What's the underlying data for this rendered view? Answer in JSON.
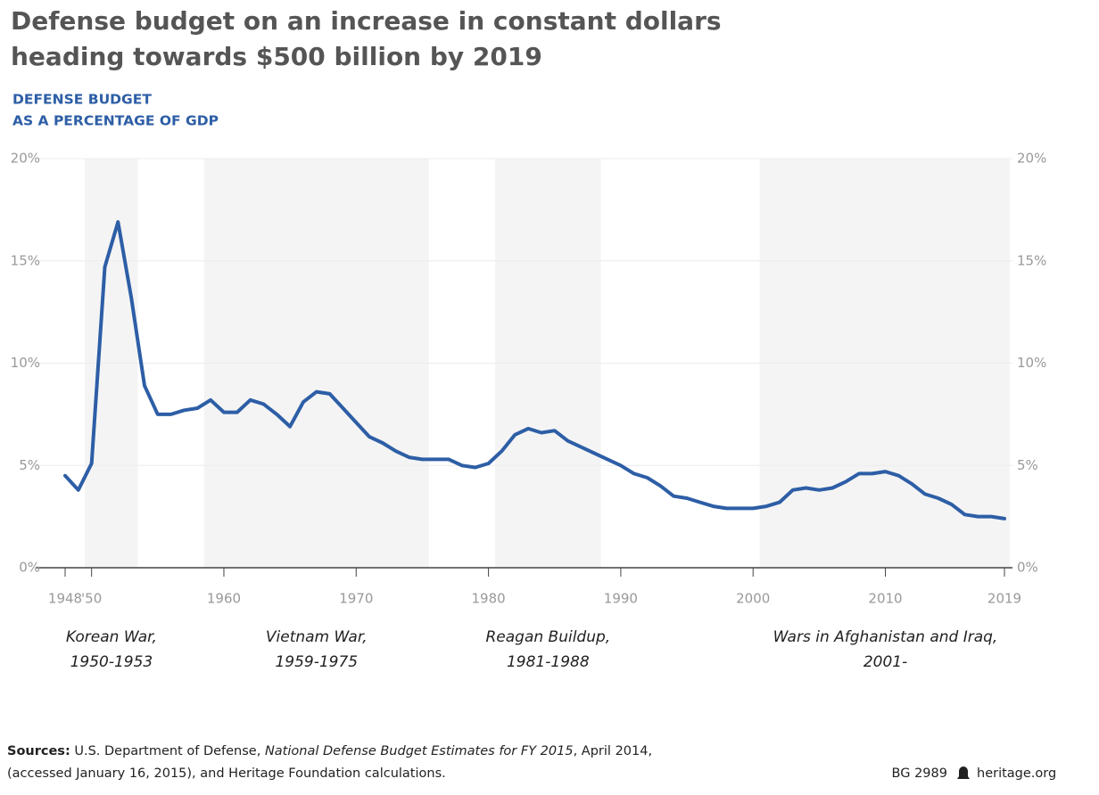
{
  "chart_data": {
    "type": "line",
    "title": [
      "Defense budget on an increase in constant dollars",
      "heading towards $500 billion by 2019"
    ],
    "subtitle": [
      "DEFENSE BUDGET",
      "AS A PERCENTAGE OF GDP"
    ],
    "x": [
      1948,
      1949,
      1950,
      1951,
      1952,
      1953,
      1954,
      1955,
      1956,
      1957,
      1958,
      1959,
      1960,
      1961,
      1962,
      1963,
      1964,
      1965,
      1966,
      1967,
      1968,
      1969,
      1970,
      1971,
      1972,
      1973,
      1974,
      1975,
      1976,
      1977,
      1978,
      1979,
      1980,
      1981,
      1982,
      1983,
      1984,
      1985,
      1986,
      1987,
      1988,
      1989,
      1990,
      1991,
      1992,
      1993,
      1994,
      1995,
      1996,
      1997,
      1998,
      1999,
      2000,
      2001,
      2002,
      2003,
      2004,
      2005,
      2006,
      2007,
      2008,
      2009,
      2010,
      2011,
      2012,
      2013,
      2014,
      2015,
      2016,
      2017,
      2018,
      2019
    ],
    "values": [
      4.5,
      3.8,
      5.1,
      14.7,
      16.9,
      13.2,
      8.9,
      7.5,
      7.5,
      7.7,
      7.8,
      8.2,
      7.6,
      7.6,
      8.2,
      8.0,
      7.5,
      6.9,
      8.1,
      8.6,
      8.5,
      7.8,
      7.1,
      6.4,
      6.1,
      5.7,
      5.4,
      5.3,
      5.3,
      5.3,
      5.0,
      4.9,
      5.1,
      5.7,
      6.5,
      6.8,
      6.6,
      6.7,
      6.2,
      5.9,
      5.6,
      5.3,
      5.0,
      4.6,
      4.4,
      4.0,
      3.5,
      3.4,
      3.2,
      3.0,
      2.9,
      2.9,
      2.9,
      3.0,
      3.2,
      3.8,
      3.9,
      3.8,
      3.9,
      4.2,
      4.6,
      4.6,
      4.7,
      4.5,
      4.1,
      3.6,
      3.4,
      3.1,
      2.6,
      2.5,
      2.5,
      2.4
    ],
    "color": "#2d5ea6",
    "xlim": [
      1948,
      2019
    ],
    "xticks": [
      {
        "value": 1948,
        "label": "1948"
      },
      {
        "value": 1950,
        "label": "'50"
      },
      1960,
      1970,
      1980,
      1990,
      2000,
      2010,
      2019
    ],
    "ylim": [
      0,
      20
    ],
    "yticks": [
      {
        "value": 0,
        "label": "0%"
      },
      {
        "value": 5,
        "label": "5%"
      },
      {
        "value": 10,
        "label": "10%"
      },
      {
        "value": 15,
        "label": "15%"
      },
      {
        "value": 20,
        "label": "20%"
      }
    ],
    "grid": true,
    "periods": [
      {
        "name": "Korean War,",
        "years": "1950-1953",
        "start": 1950,
        "end": 1953
      },
      {
        "name": "Vietnam War,",
        "years": "1959-1975",
        "start": 1959,
        "end": 1975
      },
      {
        "name": "Reagan Buildup,",
        "years": "1981-1988",
        "start": 1981,
        "end": 1988
      },
      {
        "name": "Wars in Afghanistan and Iraq,",
        "years": "2001-",
        "start": 2001,
        "end": null
      }
    ],
    "source": {
      "label": "Sources:",
      "line1": "U.S. Department of Defense,",
      "publication": "National Defense Budget Estimates for FY 2015",
      "line1_end": ", April 2014,",
      "line2": "(accessed January 16, 2015), and Heritage Foundation calculations.",
      "code": "BG 2989",
      "site": "heritage.org"
    }
  }
}
